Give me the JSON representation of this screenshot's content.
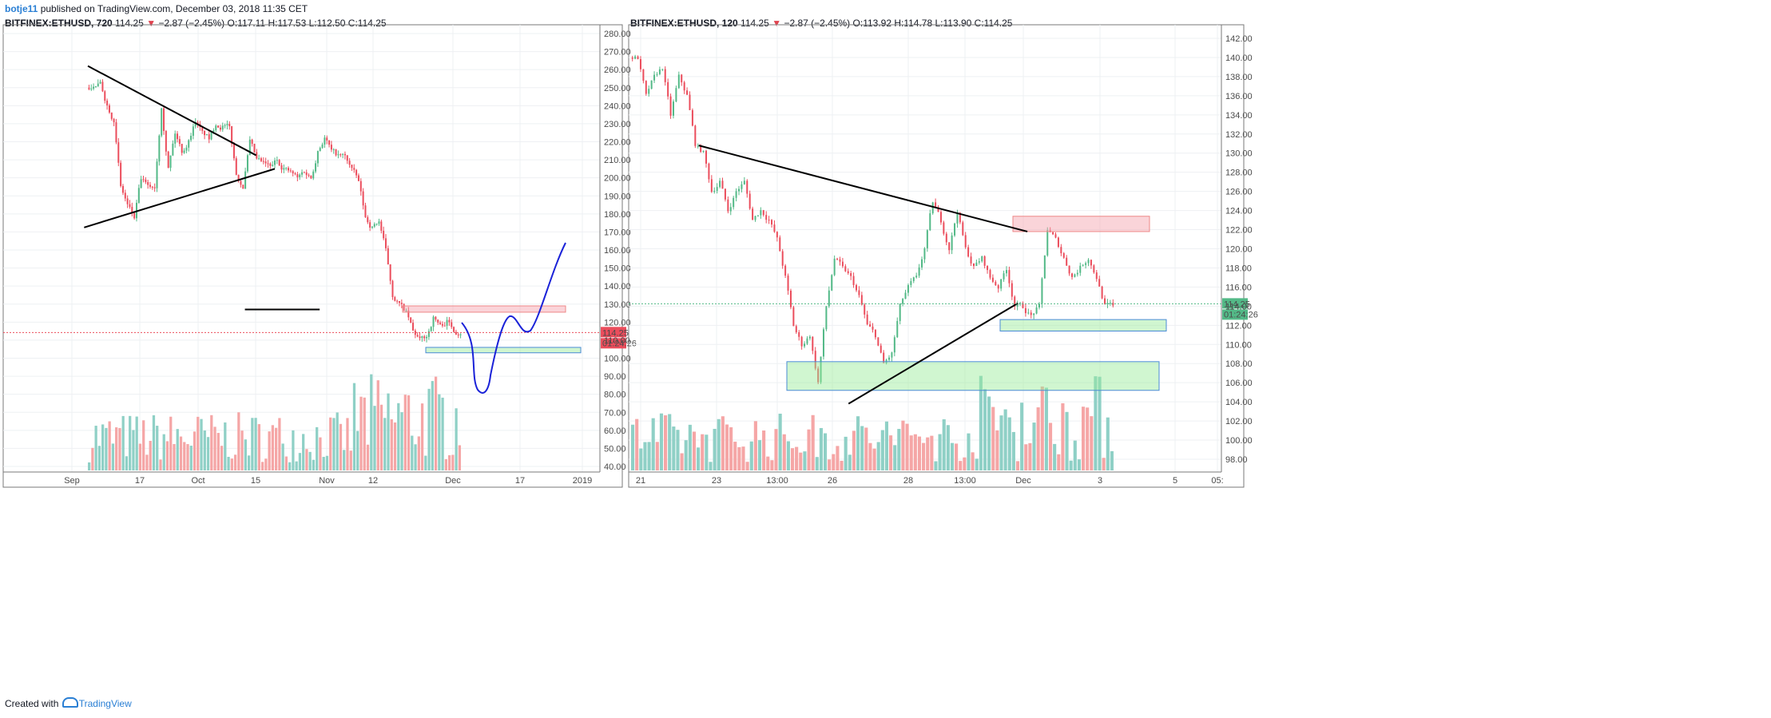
{
  "header": {
    "user": "botje11",
    "published": "published on TradingView.com, December 03, 2018 11:35 CET"
  },
  "footer": {
    "created": "Created with",
    "brand": "TradingView"
  },
  "colors": {
    "up": "#53b987",
    "down": "#eb4d5c",
    "vol_up": "#8fd0c6",
    "vol_down": "#f5a6a6",
    "drawing_blue": "#1a22d8"
  },
  "chart_data": [
    {
      "type": "candlestick",
      "symbol": "BITFINEX:ETHUSD, 720",
      "last": "114.25",
      "change": "−2.87 (−2.45%)",
      "ohlc": {
        "O": "117.11",
        "H": "117.53",
        "L": "112.50",
        "C": "114.25"
      },
      "price_label": "114.25",
      "countdown": "01:24:26",
      "ylim": [
        35,
        285
      ],
      "y_ticks": [
        "280.00",
        "270.00",
        "260.00",
        "250.00",
        "240.00",
        "230.00",
        "220.00",
        "210.00",
        "200.00",
        "190.00",
        "180.00",
        "170.00",
        "160.00",
        "150.00",
        "140.00",
        "130.00",
        "120.00",
        "110.00",
        "100.00",
        "90.00",
        "80.00",
        "70.00",
        "60.00",
        "50.00",
        "40.00"
      ],
      "x_ticks": [
        "Sep",
        "17",
        "Oct",
        "15",
        "Nov",
        "12",
        "Dec",
        "17",
        "2019"
      ],
      "close_path": [
        250,
        252,
        240,
        232,
        195,
        185,
        178,
        200,
        195,
        195,
        240,
        205,
        225,
        215,
        220,
        232,
        225,
        222,
        230,
        228,
        228,
        202,
        195,
        220,
        210,
        208,
        206,
        210,
        205,
        203,
        200,
        204,
        200,
        215,
        222,
        215,
        212,
        212,
        205,
        198,
        178,
        172,
        176,
        160,
        135,
        130,
        125,
        115,
        110,
        112,
        122,
        118,
        120,
        116,
        114
      ],
      "zones": [
        {
          "color": "pink",
          "from": 125.5,
          "to": 129
        },
        {
          "color": "green",
          "from": 103,
          "to": 106
        }
      ],
      "lines": [
        {
          "color": "black",
          "from": [
            0,
            262
          ],
          "to": [
            0.45,
            212.5
          ]
        },
        {
          "color": "black",
          "from": [
            -0.01,
            172.5
          ],
          "to": [
            0.5,
            205
          ]
        },
        {
          "color": "black",
          "from": [
            0.42,
            127
          ],
          "to": [
            0.62,
            127
          ]
        }
      ]
    },
    {
      "type": "candlestick",
      "symbol": "BITFINEX:ETHUSD, 120",
      "last": "114.25",
      "change": "−2.87 (−2.45%)",
      "ohlc": {
        "O": "113.92",
        "H": "114.78",
        "L": "113.90",
        "C": "114.25"
      },
      "price_label": "114.25",
      "countdown": "01:24:26",
      "ylim": [
        97,
        143
      ],
      "y_ticks": [
        "142.00",
        "140.00",
        "138.00",
        "136.00",
        "134.00",
        "132.00",
        "130.00",
        "128.00",
        "126.00",
        "124.00",
        "122.00",
        "120.00",
        "118.00",
        "116.00",
        "114.00",
        "112.00",
        "110.00",
        "108.00",
        "106.00",
        "104.00",
        "102.00",
        "100.00",
        "98.00"
      ],
      "x_ticks": [
        "21",
        "23",
        "13:00",
        "26",
        "28",
        "13:00",
        "Dec",
        "3",
        "5",
        "05:"
      ],
      "close_path": [
        140,
        136,
        138,
        139,
        134,
        138,
        136,
        131,
        130,
        126,
        127,
        124,
        126,
        127,
        123,
        124,
        123,
        121,
        117,
        112,
        110,
        111,
        106,
        114,
        119,
        118,
        117,
        115,
        112,
        111,
        108,
        109,
        114,
        116,
        117,
        120,
        125,
        123,
        120,
        124,
        120,
        118,
        119,
        117,
        116,
        118,
        114,
        114,
        113,
        114,
        122,
        121,
        119,
        117,
        118,
        119,
        117,
        114,
        114
      ],
      "zones": [
        {
          "color": "pink",
          "from": 121.8,
          "to": 123.4
        },
        {
          "color": "green",
          "from": 111.4,
          "to": 112.6
        },
        {
          "color": "green",
          "from": 105.2,
          "to": 108.2
        }
      ],
      "lines": [
        {
          "color": "black",
          "from": [
            0.14,
            130.8
          ],
          "to": [
            0.82,
            121.8
          ]
        },
        {
          "color": "black",
          "from": [
            0.45,
            103.8
          ],
          "to": [
            0.8,
            114.3
          ]
        }
      ]
    }
  ]
}
